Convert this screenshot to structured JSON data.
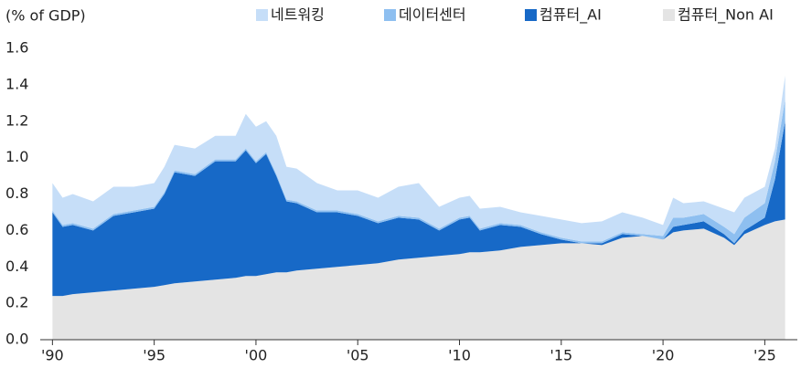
{
  "chart_data": {
    "type": "stacked_area",
    "y_axis_label": "(% of GDP)",
    "x": [
      1990,
      1990.5,
      1991,
      1992,
      1993,
      1994,
      1995,
      1995.5,
      1996,
      1997,
      1998,
      1999,
      1999.5,
      2000,
      2000.5,
      2001,
      2001.5,
      2002,
      2003,
      2004,
      2005,
      2006,
      2007,
      2008,
      2009,
      2010,
      2010.5,
      2011,
      2012,
      2013,
      2014,
      2015,
      2016,
      2017,
      2018,
      2019,
      2020,
      2020.5,
      2021,
      2022,
      2023,
      2023.5,
      2024,
      2025,
      2025.5,
      2026
    ],
    "series": [
      {
        "name": "네트워킹",
        "color": "#c6def8",
        "values": [
          0.15,
          0.15,
          0.16,
          0.15,
          0.15,
          0.13,
          0.13,
          0.14,
          0.14,
          0.14,
          0.13,
          0.13,
          0.19,
          0.19,
          0.17,
          0.21,
          0.18,
          0.18,
          0.15,
          0.11,
          0.13,
          0.13,
          0.16,
          0.19,
          0.12,
          0.11,
          0.11,
          0.11,
          0.09,
          0.07,
          0.09,
          0.1,
          0.1,
          0.11,
          0.11,
          0.09,
          0.06,
          0.11,
          0.08,
          0.07,
          0.1,
          0.12,
          0.11,
          0.09,
          0.07,
          0.13
        ]
      },
      {
        "name": "데이터센터",
        "color": "#8ebff0",
        "values": [
          0.01,
          0.01,
          0.01,
          0.01,
          0.01,
          0.01,
          0.01,
          0.01,
          0.01,
          0.01,
          0.01,
          0.01,
          0.01,
          0.01,
          0.01,
          0.01,
          0.01,
          0.01,
          0.01,
          0.01,
          0.01,
          0.01,
          0.01,
          0.01,
          0.01,
          0.01,
          0.01,
          0.01,
          0.01,
          0.01,
          0.01,
          0.01,
          0.01,
          0.01,
          0.01,
          0.01,
          0.02,
          0.05,
          0.04,
          0.04,
          0.04,
          0.05,
          0.07,
          0.08,
          0.1,
          0.12
        ]
      },
      {
        "name": "컴퓨터_AI",
        "color": "#1769c7",
        "values": [
          0.46,
          0.38,
          0.38,
          0.34,
          0.41,
          0.42,
          0.43,
          0.5,
          0.61,
          0.58,
          0.65,
          0.64,
          0.69,
          0.62,
          0.66,
          0.53,
          0.39,
          0.37,
          0.31,
          0.3,
          0.27,
          0.22,
          0.23,
          0.21,
          0.14,
          0.19,
          0.19,
          0.12,
          0.14,
          0.11,
          0.06,
          0.02,
          0,
          0.01,
          0.02,
          0,
          0,
          0.03,
          0.03,
          0.04,
          0.02,
          0.01,
          0.02,
          0.04,
          0.23,
          0.54
        ]
      },
      {
        "name": "컴퓨터_Non AI",
        "color": "#e4e4e4",
        "values": [
          0.24,
          0.24,
          0.25,
          0.26,
          0.27,
          0.28,
          0.29,
          0.3,
          0.31,
          0.32,
          0.33,
          0.34,
          0.35,
          0.35,
          0.36,
          0.37,
          0.37,
          0.38,
          0.39,
          0.4,
          0.41,
          0.42,
          0.44,
          0.45,
          0.46,
          0.47,
          0.48,
          0.48,
          0.49,
          0.51,
          0.52,
          0.53,
          0.53,
          0.52,
          0.56,
          0.57,
          0.55,
          0.59,
          0.6,
          0.61,
          0.56,
          0.52,
          0.58,
          0.63,
          0.65,
          0.66
        ]
      }
    ],
    "xlim": [
      1989.4,
      2026.6
    ],
    "xticks": [
      {
        "value": 1990,
        "label": "'90"
      },
      {
        "value": 1995,
        "label": "'95"
      },
      {
        "value": 2000,
        "label": "'00"
      },
      {
        "value": 2005,
        "label": "'05"
      },
      {
        "value": 2010,
        "label": "'10"
      },
      {
        "value": 2015,
        "label": "'15"
      },
      {
        "value": 2020,
        "label": "'20"
      },
      {
        "value": 2025,
        "label": "'25"
      }
    ],
    "ylim": [
      0,
      1.6
    ],
    "yticks": [
      {
        "value": 0,
        "label": "0.0"
      },
      0.2,
      0.4,
      0.6,
      0.8,
      {
        "value": 1,
        "label": "1.0"
      },
      1.2,
      1.4,
      1.6
    ],
    "legend": "top"
  }
}
